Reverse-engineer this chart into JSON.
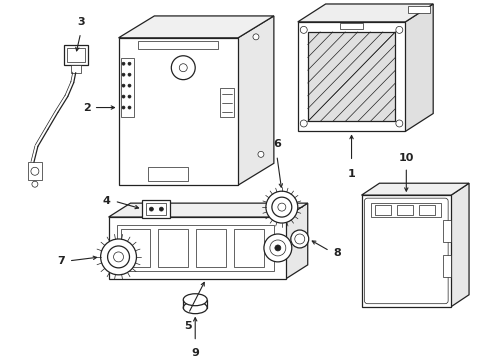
{
  "background_color": "#ffffff",
  "line_color": "#222222",
  "figsize": [
    4.89,
    3.6
  ],
  "dpi": 100,
  "lw_main": 0.9,
  "lw_thin": 0.5
}
